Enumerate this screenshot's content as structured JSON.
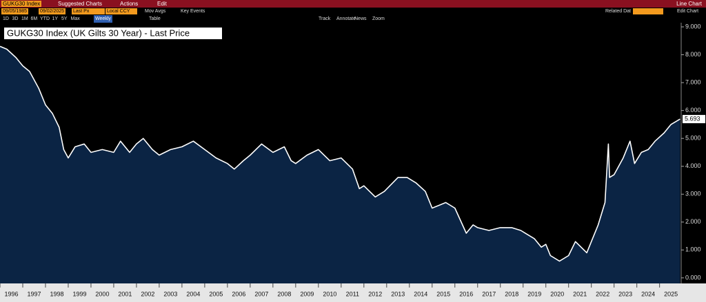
{
  "toolbar": {
    "security": "GUKG30 Index",
    "suggested": "Suggested Charts",
    "actions": "Actions",
    "edit": "Edit",
    "chart_type": "Line Chart",
    "start_date": "09/05/1985",
    "end_date": "09/02/2025",
    "field": "Last Px",
    "currency": "Local CCY",
    "mov_avgs": "Mov Avgs",
    "key_events": "Key Events",
    "related": "Related Dat",
    "edit_chart": "Edit Chart",
    "ranges": [
      "1D",
      "3D",
      "1M",
      "6M",
      "YTD",
      "1Y",
      "5Y",
      "Max"
    ],
    "frequency": "Weekly",
    "table": "Table",
    "tools": [
      "Track",
      "Annotate",
      "News",
      "Zoom"
    ]
  },
  "chart_data": {
    "type": "line",
    "title": "GUKG30 Index (UK Gilts 30 Year) - Last Price",
    "x": [
      1996.0,
      1996.3,
      1996.7,
      1997.0,
      1997.3,
      1997.7,
      1998.0,
      1998.3,
      1998.6,
      1998.8,
      1999.0,
      1999.3,
      1999.7,
      2000.0,
      2000.5,
      2001.0,
      2001.3,
      2001.7,
      2002.0,
      2002.3,
      2002.7,
      2003.0,
      2003.5,
      2004.0,
      2004.5,
      2005.0,
      2005.5,
      2006.0,
      2006.3,
      2006.7,
      2007.0,
      2007.5,
      2008.0,
      2008.5,
      2008.8,
      2009.0,
      2009.5,
      2010.0,
      2010.5,
      2011.0,
      2011.5,
      2011.8,
      2012.0,
      2012.5,
      2012.9,
      2013.5,
      2013.9,
      2014.3,
      2014.7,
      2015.0,
      2015.3,
      2015.6,
      2016.0,
      2016.5,
      2016.8,
      2017.0,
      2017.5,
      2018.0,
      2018.5,
      2018.9,
      2019.5,
      2019.8,
      2020.0,
      2020.2,
      2020.6,
      2021.0,
      2021.3,
      2021.8,
      2022.0,
      2022.3,
      2022.6,
      2022.75,
      2022.8,
      2023.0,
      2023.4,
      2023.7,
      2023.9,
      2024.2,
      2024.5,
      2024.8,
      2025.2,
      2025.5,
      2025.9
    ],
    "series": [
      {
        "name": "GUKG30 Index",
        "color": "#ffffff",
        "values": [
          8.3,
          8.2,
          7.9,
          7.6,
          7.4,
          6.8,
          6.2,
          5.9,
          5.4,
          4.6,
          4.3,
          4.7,
          4.8,
          4.5,
          4.6,
          4.5,
          4.9,
          4.5,
          4.8,
          5.0,
          4.6,
          4.4,
          4.6,
          4.7,
          4.9,
          4.6,
          4.3,
          4.1,
          3.9,
          4.2,
          4.4,
          4.8,
          4.5,
          4.7,
          4.2,
          4.1,
          4.4,
          4.6,
          4.2,
          4.3,
          3.9,
          3.2,
          3.3,
          2.9,
          3.1,
          3.6,
          3.6,
          3.4,
          3.1,
          2.5,
          2.6,
          2.7,
          2.5,
          1.6,
          1.9,
          1.8,
          1.7,
          1.8,
          1.8,
          1.7,
          1.4,
          1.1,
          1.2,
          0.8,
          0.6,
          0.8,
          1.3,
          0.9,
          1.3,
          1.9,
          2.7,
          4.8,
          3.6,
          3.7,
          4.3,
          4.9,
          4.1,
          4.5,
          4.6,
          4.9,
          5.2,
          5.5,
          5.693
        ]
      }
    ],
    "xlim": [
      1996,
      2025.95
    ],
    "xticks": [
      1996,
      1997,
      1998,
      1999,
      2000,
      2001,
      2002,
      2003,
      2004,
      2005,
      2006,
      2007,
      2008,
      2009,
      2010,
      2011,
      2012,
      2013,
      2014,
      2015,
      2016,
      2017,
      2018,
      2019,
      2020,
      2021,
      2022,
      2023,
      2024,
      2025
    ],
    "ylim": [
      -0.2,
      9.05
    ],
    "yticks": [
      {
        "value": 0,
        "label": "0.000"
      },
      {
        "value": 1,
        "label": "1.000"
      },
      {
        "value": 2,
        "label": "2.000"
      },
      {
        "value": 3,
        "label": "3.000"
      },
      {
        "value": 4,
        "label": "4.000"
      },
      {
        "value": 5,
        "label": "5.000"
      },
      {
        "value": 6,
        "label": "6.000"
      },
      {
        "value": 7,
        "label": "7.000"
      },
      {
        "value": 8,
        "label": "8.000"
      },
      {
        "value": 9,
        "label": "9.000"
      }
    ],
    "area_color": "#0b2444"
  }
}
